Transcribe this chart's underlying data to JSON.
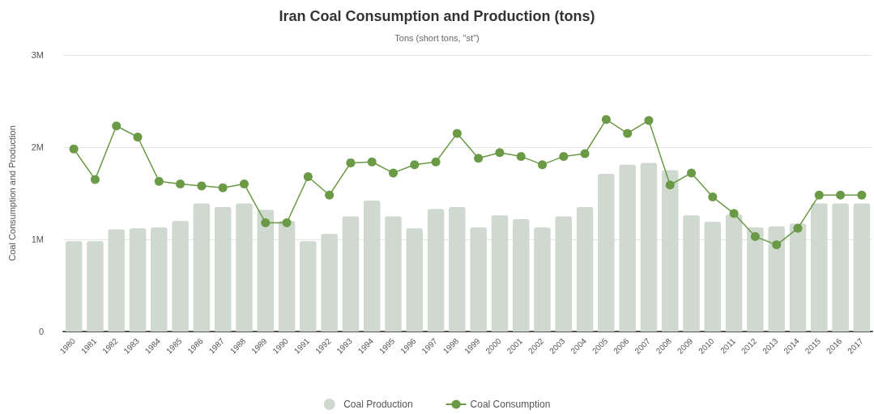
{
  "chart_data": {
    "type": "bar",
    "title": "Iran Coal Consumption and Production (tons)",
    "subtitle": "Tons (short tons, \"st\")",
    "ylabel": "Coal Consumption and Production",
    "categories": [
      "1980",
      "1981",
      "1982",
      "1983",
      "1984",
      "1985",
      "1986",
      "1987",
      "1988",
      "1989",
      "1990",
      "1991",
      "1992",
      "1993",
      "1994",
      "1995",
      "1996",
      "1997",
      "1998",
      "1999",
      "2000",
      "2001",
      "2002",
      "2003",
      "2004",
      "2005",
      "2006",
      "2007",
      "2008",
      "2009",
      "2010",
      "2011",
      "2012",
      "2013",
      "2014",
      "2015",
      "2016",
      "2017"
    ],
    "series": [
      {
        "name": "Coal Production",
        "color": "#d0d9d0",
        "values": [
          0.98,
          0.98,
          1.11,
          1.12,
          1.13,
          1.2,
          1.39,
          1.35,
          1.39,
          1.32,
          1.2,
          0.98,
          1.06,
          1.25,
          1.42,
          1.25,
          1.12,
          1.33,
          1.35,
          1.13,
          1.26,
          1.22,
          1.13,
          1.25,
          1.35,
          1.71,
          1.81,
          1.83,
          1.75,
          1.26,
          1.19,
          1.27,
          1.13,
          1.14,
          1.17,
          1.39,
          1.39,
          1.39
        ]
      },
      {
        "name": "Coal Consumption",
        "type": "line",
        "color": "#6a9a45",
        "values": [
          1.98,
          1.65,
          2.23,
          2.11,
          1.63,
          1.6,
          1.58,
          1.56,
          1.6,
          1.18,
          1.18,
          1.68,
          1.48,
          1.83,
          1.84,
          1.72,
          1.81,
          1.84,
          2.15,
          1.88,
          1.94,
          1.9,
          1.81,
          1.9,
          1.93,
          2.3,
          2.15,
          2.29,
          1.59,
          1.72,
          1.46,
          1.28,
          1.03,
          0.94,
          1.12,
          1.48,
          1.48,
          1.48
        ]
      }
    ],
    "ylim": [
      0,
      3
    ],
    "yticks": [
      0,
      {
        "value": 1,
        "label": "1M"
      },
      {
        "value": 2,
        "label": "2M"
      },
      {
        "value": 3,
        "label": "3M"
      }
    ],
    "grid": "y",
    "legend": "bottom",
    "marker": "circle",
    "line_style": "solid"
  }
}
